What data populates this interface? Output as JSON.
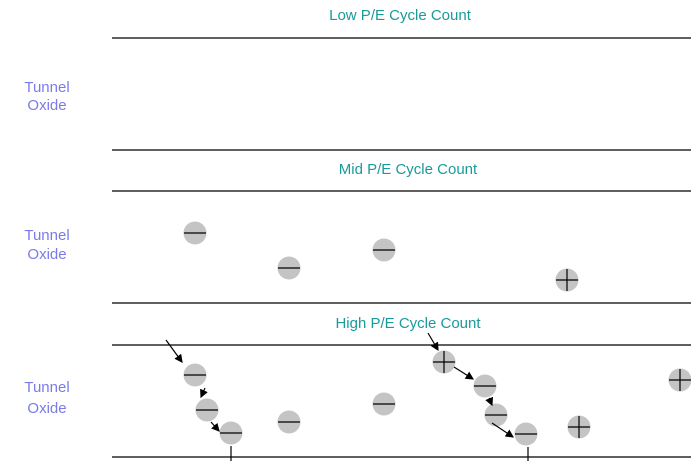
{
  "panels": [
    {
      "title": "Low P/E Cycle Count",
      "label_lines": [
        "Tunnel",
        "Oxide"
      ]
    },
    {
      "title": "Mid P/E Cycle Count",
      "label_lines": [
        "Tunnel",
        "Oxide"
      ]
    },
    {
      "title": "High P/E Cycle Count",
      "label_lines": [
        "Tunnel",
        "Oxide"
      ]
    }
  ]
}
